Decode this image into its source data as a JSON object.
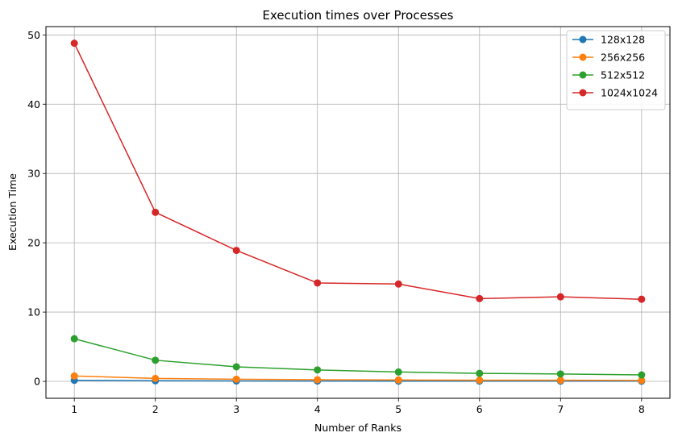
{
  "chart_data": {
    "type": "line",
    "title": "Execution times over Processes",
    "xlabel": "Number of Ranks",
    "ylabel": "Execution Time",
    "x": [
      1,
      2,
      3,
      4,
      5,
      6,
      7,
      8
    ],
    "xlim": [
      0.65,
      8.35
    ],
    "ylim": [
      -2.44,
      51.2
    ],
    "xticks": [
      "1",
      "2",
      "3",
      "4",
      "5",
      "6",
      "7",
      "8"
    ],
    "yticks": [
      "0",
      "10",
      "20",
      "30",
      "40",
      "50"
    ],
    "grid": true,
    "legend_position": "top-right",
    "marker": "circle",
    "series": [
      {
        "name": "128x128",
        "color": "#1f77b4",
        "values": [
          0.15,
          0.09,
          0.06,
          0.05,
          0.04,
          0.04,
          0.04,
          0.03
        ]
      },
      {
        "name": "256x256",
        "color": "#ff7f0e",
        "values": [
          0.78,
          0.42,
          0.31,
          0.24,
          0.2,
          0.17,
          0.16,
          0.14
        ]
      },
      {
        "name": "512x512",
        "color": "#2ca02c",
        "values": [
          6.15,
          3.05,
          2.1,
          1.65,
          1.35,
          1.15,
          1.07,
          0.93
        ]
      },
      {
        "name": "1024x1024",
        "color": "#d62728",
        "values": [
          48.8,
          24.4,
          18.9,
          14.2,
          14.05,
          11.95,
          12.2,
          11.85
        ]
      }
    ]
  }
}
